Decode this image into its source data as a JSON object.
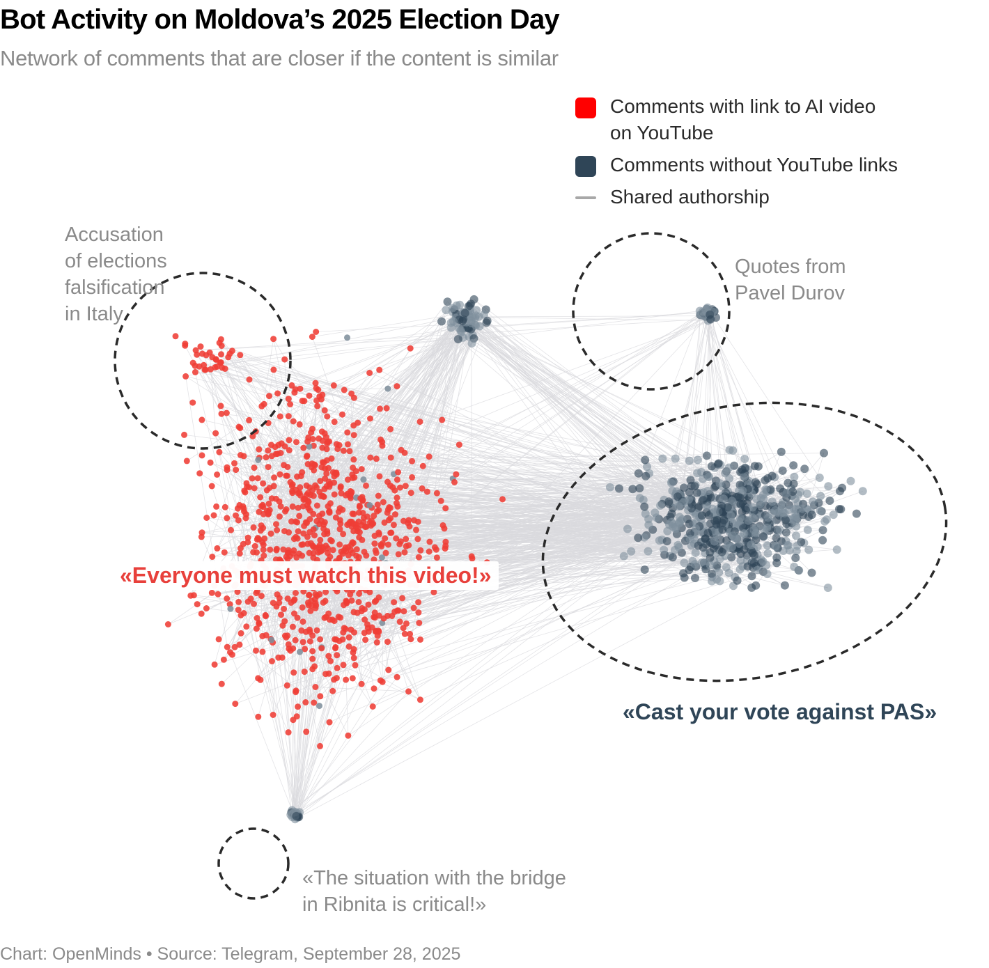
{
  "header": {
    "title": "Bot Activity on Moldova’s 2025 Election Day",
    "subtitle": "Network of comments that are closer if the content is similar"
  },
  "legend": {
    "items": [
      {
        "key": "ai_video",
        "label_line1": "Comments with link to AI video",
        "label_line2": "on YouTube",
        "color": "#ff0000",
        "shape": "square"
      },
      {
        "key": "no_youtube",
        "label_line1": "Comments without YouTube links",
        "color": "#2f4557",
        "shape": "square"
      },
      {
        "key": "shared_authorship",
        "label_line1": "Shared authorship",
        "color": "#a8a8a8",
        "shape": "line"
      }
    ]
  },
  "annotations": {
    "italy": [
      "Accusation",
      "of elections",
      "falsification",
      "in Italy"
    ],
    "durov": [
      "Quotes from",
      "Pavel Durov"
    ],
    "everyone": "«Everyone must watch this video!»",
    "pas": "«Cast your vote against PAS»",
    "bridge": [
      "«The situation with the bridge",
      "in Ribnita is critical!»"
    ]
  },
  "footer": {
    "credit": "Chart: OpenMinds • Source: Telegram, September 28, 2025"
  },
  "colors": {
    "red_node": "#ef3e36",
    "dark_node": "#2f4557",
    "grey_node": "#7f8f9c",
    "edge": "#d9dadd",
    "highlight_outline": "#2a2a2a"
  },
  "chart_data": {
    "type": "network",
    "title": "Bot Activity on Moldova’s 2025 Election Day",
    "subtitle": "Network of comments that are closer if the content is similar",
    "node_categories": [
      "Comments with link to AI video on YouTube",
      "Comments without YouTube links"
    ],
    "edge_meaning": "Shared authorship",
    "layout_space": "normalized 0-1 (x right, y down)",
    "clusters": [
      {
        "name": "everyone-must-watch",
        "category": "Comments with link to AI video on YouTube",
        "center": [
          0.3,
          0.55
        ],
        "spread": [
          0.25,
          0.4
        ],
        "approx_nodes": 1100
      },
      {
        "name": "italy-falsification",
        "category": "Comments with link to AI video on YouTube",
        "center": [
          0.18,
          0.3
        ],
        "spread": [
          0.06,
          0.06
        ],
        "approx_nodes": 35,
        "highlighted": true
      },
      {
        "name": "cast-vote-against-pas",
        "category": "Comments without YouTube links",
        "center": [
          0.76,
          0.52
        ],
        "spread": [
          0.2,
          0.15
        ],
        "approx_nodes": 650,
        "highlighted": true
      },
      {
        "name": "pavel-durov-quotes",
        "category": "Comments without YouTube links",
        "center": [
          0.73,
          0.24
        ],
        "spread": [
          0.02,
          0.02
        ],
        "approx_nodes": 30,
        "highlighted": true
      },
      {
        "name": "ribnita-bridge",
        "category": "Comments without YouTube links",
        "center": [
          0.27,
          0.92
        ],
        "spread": [
          0.01,
          0.01
        ],
        "approx_nodes": 25,
        "highlighted": true
      },
      {
        "name": "upper-dark-group",
        "category": "Comments without YouTube links",
        "center": [
          0.46,
          0.25
        ],
        "spread": [
          0.04,
          0.05
        ],
        "approx_nodes": 70
      }
    ]
  }
}
